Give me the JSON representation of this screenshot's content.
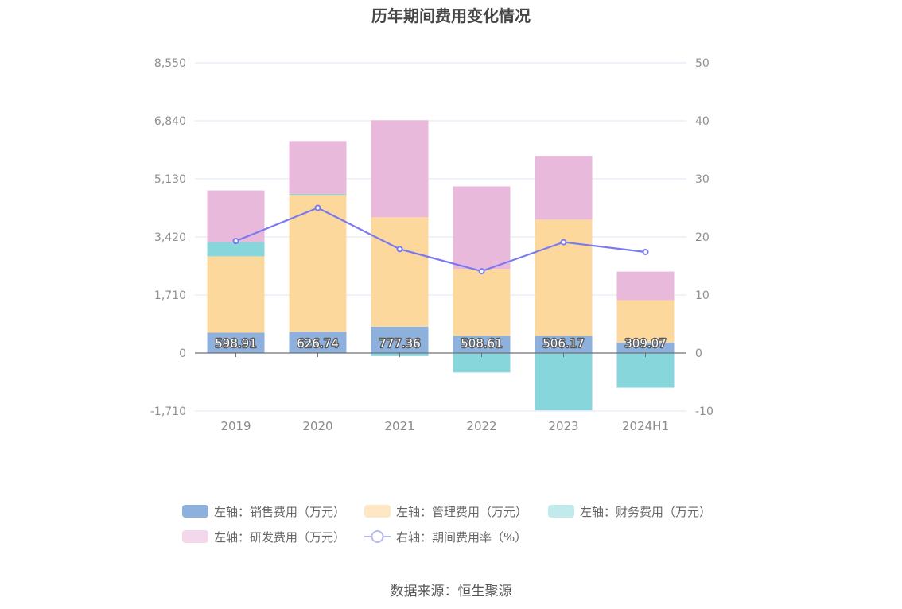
{
  "title": "历年期间费用变化情况",
  "source": "数据来源：恒生聚源",
  "colors": {
    "sales": "#8eb0dd",
    "admin": "#fdd89c",
    "finance": "#87d6dc",
    "rnd": "#e9b9dc",
    "rate": "#7a7af0"
  },
  "chart_data": {
    "type": "bar",
    "stacked": true,
    "categories": [
      "2019",
      "2020",
      "2021",
      "2022",
      "2023",
      "2024H1"
    ],
    "left_axis": {
      "ticks": [
        "8,550",
        "6,840",
        "5,130",
        "3,420",
        "1,710",
        "0",
        "-1,710"
      ],
      "range": [
        -1710,
        8550
      ]
    },
    "right_axis": {
      "ticks": [
        "50",
        "40",
        "30",
        "20",
        "10",
        "0",
        "-10"
      ],
      "range": [
        -10,
        50
      ]
    },
    "series": [
      {
        "key": "sales",
        "name": "左轴：销售费用（万元）",
        "axis": "left",
        "values": [
          598.91,
          626.74,
          777.36,
          508.61,
          506.17,
          309.07
        ],
        "labels": [
          "598.91",
          "626.74",
          "777.36",
          "508.61",
          "506.17",
          "309.07"
        ]
      },
      {
        "key": "admin",
        "name": "左轴：管理费用（万元）",
        "axis": "left",
        "values": [
          2250,
          4030,
          3220,
          1970,
          3420,
          1250
        ]
      },
      {
        "key": "finance",
        "name": "左轴：财务费用（万元）",
        "axis": "left",
        "values": [
          420,
          30,
          -90,
          -570,
          -1690,
          -1020
        ]
      },
      {
        "key": "rnd",
        "name": "左轴：研发费用（万元）",
        "axis": "left",
        "values": [
          1520,
          1560,
          2860,
          2430,
          1880,
          840
        ]
      },
      {
        "key": "rate",
        "name": "右轴：期间费用率（%）",
        "axis": "right",
        "type": "line",
        "values": [
          19.3,
          25.0,
          17.9,
          14.1,
          19.1,
          17.4
        ]
      }
    ],
    "grid": true,
    "legend_position": "bottom"
  }
}
